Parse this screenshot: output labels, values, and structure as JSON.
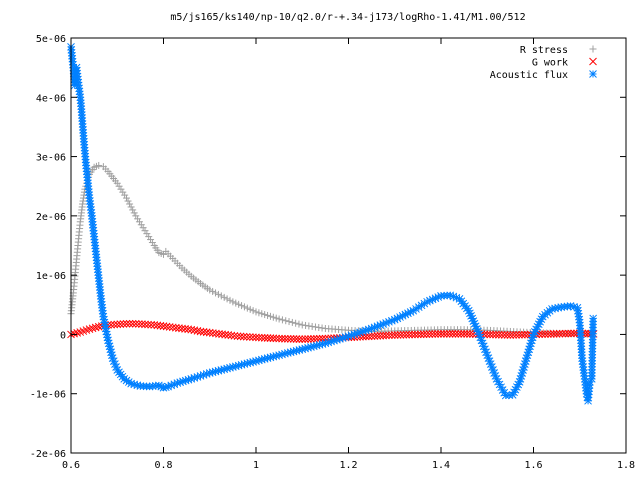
{
  "chart_data": {
    "type": "scatter",
    "title": "m5/js165/ks140/np-10/q2.0/r-+.34-j173/logRho-1.41/M1.00/512",
    "xlabel": "",
    "ylabel": "",
    "xlim": [
      0.6,
      1.8
    ],
    "ylim": [
      -2e-06,
      5e-06
    ],
    "xticks": [
      {
        "v": 0.6,
        "label": "0.6"
      },
      {
        "v": 0.8,
        "label": "0.8"
      },
      {
        "v": 1.0,
        "label": "1"
      },
      {
        "v": 1.2,
        "label": "1.2"
      },
      {
        "v": 1.4,
        "label": "1.4"
      },
      {
        "v": 1.6,
        "label": "1.6"
      },
      {
        "v": 1.8,
        "label": "1.8"
      }
    ],
    "yticks": [
      {
        "v": -2e-06,
        "label": "-2e-06"
      },
      {
        "v": -1e-06,
        "label": "-1e-06"
      },
      {
        "v": 0,
        "label": "0"
      },
      {
        "v": 1e-06,
        "label": "1e-06"
      },
      {
        "v": 2e-06,
        "label": "2e-06"
      },
      {
        "v": 3e-06,
        "label": "3e-06"
      },
      {
        "v": 4e-06,
        "label": "4e-06"
      },
      {
        "v": 5e-06,
        "label": "5e-06"
      }
    ],
    "grid": false,
    "legend_position": "top-right",
    "series": [
      {
        "name": "R stress",
        "marker": "plus",
        "color": "#a0a0a0",
        "points": [
          [
            0.6,
            3.5e-07
          ],
          [
            0.605,
            7e-07
          ],
          [
            0.61,
            1.1e-06
          ],
          [
            0.615,
            1.5e-06
          ],
          [
            0.62,
            1.9e-06
          ],
          [
            0.625,
            2.2e-06
          ],
          [
            0.63,
            2.45e-06
          ],
          [
            0.64,
            2.7e-06
          ],
          [
            0.65,
            2.82e-06
          ],
          [
            0.66,
            2.85e-06
          ],
          [
            0.67,
            2.83e-06
          ],
          [
            0.68,
            2.75e-06
          ],
          [
            0.7,
            2.55e-06
          ],
          [
            0.72,
            2.3e-06
          ],
          [
            0.74,
            2e-06
          ],
          [
            0.76,
            1.75e-06
          ],
          [
            0.78,
            1.5e-06
          ],
          [
            0.79,
            1.38e-06
          ],
          [
            0.8,
            1.35e-06
          ],
          [
            0.805,
            1.4e-06
          ],
          [
            0.81,
            1.36e-06
          ],
          [
            0.82,
            1.28e-06
          ],
          [
            0.84,
            1.12e-06
          ],
          [
            0.86,
            9.8e-07
          ],
          [
            0.88,
            8.6e-07
          ],
          [
            0.9,
            7.5e-07
          ],
          [
            0.95,
            5.5e-07
          ],
          [
            1.0,
            3.8e-07
          ],
          [
            1.05,
            2.6e-07
          ],
          [
            1.1,
            1.6e-07
          ],
          [
            1.15,
            1e-07
          ],
          [
            1.2,
            7e-08
          ],
          [
            1.25,
            5e-08
          ],
          [
            1.3,
            6e-08
          ],
          [
            1.35,
            7e-08
          ],
          [
            1.4,
            8e-08
          ],
          [
            1.45,
            8e-08
          ],
          [
            1.5,
            7e-08
          ],
          [
            1.55,
            5e-08
          ],
          [
            1.6,
            3e-08
          ],
          [
            1.65,
            2e-08
          ],
          [
            1.7,
            1e-08
          ],
          [
            1.73,
            1e-08
          ]
        ]
      },
      {
        "name": "G work",
        "marker": "cross",
        "color": "#ff0000",
        "points": [
          [
            0.6,
            0.0
          ],
          [
            0.62,
            4e-08
          ],
          [
            0.64,
            9e-08
          ],
          [
            0.66,
            1.3e-07
          ],
          [
            0.68,
            1.6e-07
          ],
          [
            0.7,
            1.7e-07
          ],
          [
            0.72,
            1.8e-07
          ],
          [
            0.74,
            1.8e-07
          ],
          [
            0.76,
            1.7e-07
          ],
          [
            0.78,
            1.6e-07
          ],
          [
            0.8,
            1.4e-07
          ],
          [
            0.82,
            1.2e-07
          ],
          [
            0.84,
            1e-07
          ],
          [
            0.86,
            8e-08
          ],
          [
            0.88,
            5e-08
          ],
          [
            0.9,
            3e-08
          ],
          [
            0.92,
            1e-08
          ],
          [
            0.94,
            -1e-08
          ],
          [
            0.96,
            -3e-08
          ],
          [
            0.98,
            -4e-08
          ],
          [
            1.0,
            -5e-08
          ],
          [
            1.05,
            -7e-08
          ],
          [
            1.1,
            -8e-08
          ],
          [
            1.15,
            -7e-08
          ],
          [
            1.2,
            -5e-08
          ],
          [
            1.25,
            -3e-08
          ],
          [
            1.3,
            -1e-08
          ],
          [
            1.35,
            0.0
          ],
          [
            1.4,
            1e-08
          ],
          [
            1.45,
            1e-08
          ],
          [
            1.5,
            0.0
          ],
          [
            1.55,
            -1e-08
          ],
          [
            1.6,
            0.0
          ],
          [
            1.65,
            1e-08
          ],
          [
            1.7,
            2e-08
          ],
          [
            1.73,
            1e-08
          ]
        ]
      },
      {
        "name": "Acoustic flux",
        "marker": "star",
        "color": "#0080ff",
        "points": [
          [
            0.6,
            4.85e-06
          ],
          [
            0.605,
            4.5e-06
          ],
          [
            0.608,
            4.2e-06
          ],
          [
            0.612,
            4.5e-06
          ],
          [
            0.615,
            4.3e-06
          ],
          [
            0.62,
            4e-06
          ],
          [
            0.622,
            3.85e-06
          ],
          [
            0.625,
            3.55e-06
          ],
          [
            0.628,
            3.25e-06
          ],
          [
            0.632,
            2.9e-06
          ],
          [
            0.636,
            2.6e-06
          ],
          [
            0.64,
            2.3e-06
          ],
          [
            0.645,
            2e-06
          ],
          [
            0.65,
            1.65e-06
          ],
          [
            0.655,
            1.3e-06
          ],
          [
            0.66,
            9.5e-07
          ],
          [
            0.665,
            6e-07
          ],
          [
            0.67,
            3e-07
          ],
          [
            0.68,
            -1e-07
          ],
          [
            0.69,
            -4e-07
          ],
          [
            0.7,
            -6e-07
          ],
          [
            0.715,
            -7.5e-07
          ],
          [
            0.73,
            -8.3e-07
          ],
          [
            0.75,
            -8.7e-07
          ],
          [
            0.77,
            -8.8e-07
          ],
          [
            0.79,
            -8.6e-07
          ],
          [
            0.8,
            -9e-07
          ],
          [
            0.81,
            -8.8e-07
          ],
          [
            0.83,
            -8.2e-07
          ],
          [
            0.86,
            -7.5e-07
          ],
          [
            0.9,
            -6.5e-07
          ],
          [
            0.95,
            -5.5e-07
          ],
          [
            1.0,
            -4.5e-07
          ],
          [
            1.05,
            -3.5e-07
          ],
          [
            1.1,
            -2.5e-07
          ],
          [
            1.15,
            -1.5e-07
          ],
          [
            1.2,
            -3e-08
          ],
          [
            1.25,
            1e-07
          ],
          [
            1.3,
            2.5e-07
          ],
          [
            1.34,
            4e-07
          ],
          [
            1.37,
            5.5e-07
          ],
          [
            1.4,
            6.5e-07
          ],
          [
            1.42,
            6.6e-07
          ],
          [
            1.44,
            6e-07
          ],
          [
            1.46,
            4e-07
          ],
          [
            1.48,
            5e-08
          ],
          [
            1.5,
            -3.5e-07
          ],
          [
            1.52,
            -7.5e-07
          ],
          [
            1.54,
            -1.03e-06
          ],
          [
            1.555,
            -1.02e-06
          ],
          [
            1.57,
            -8e-07
          ],
          [
            1.585,
            -4e-07
          ],
          [
            1.6,
            0.0
          ],
          [
            1.62,
            3e-07
          ],
          [
            1.64,
            4.3e-07
          ],
          [
            1.66,
            4.6e-07
          ],
          [
            1.68,
            4.8e-07
          ],
          [
            1.695,
            4.5e-07
          ],
          [
            1.7,
            2e-07
          ],
          [
            1.705,
            -4e-07
          ],
          [
            1.71,
            -7e-07
          ],
          [
            1.715,
            -1e-06
          ],
          [
            1.718,
            -1.12e-06
          ],
          [
            1.722,
            -8e-07
          ],
          [
            1.726,
            -7.5e-07
          ],
          [
            1.729,
            2.7e-07
          ]
        ]
      }
    ]
  }
}
